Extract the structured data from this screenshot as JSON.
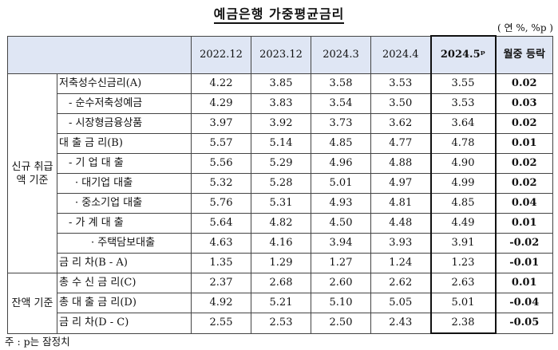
{
  "title": "예금은행 가중평균금리",
  "unit": "( 연 %, %p )",
  "columns": [
    "2022.12",
    "2023.12",
    "2024.3",
    "2024.4",
    "2024.5ᵖ",
    "월중 등락"
  ],
  "groups": {
    "new": "신규 취급액 기준",
    "balance": "잔액 기준"
  },
  "rows": [
    {
      "label": "저축성수신금리(A)",
      "values": [
        "4.22",
        "3.85",
        "3.58",
        "3.53",
        "3.55",
        "0.02"
      ]
    },
    {
      "label": "- 순수저축성예금",
      "values": [
        "4.29",
        "3.83",
        "3.54",
        "3.50",
        "3.53",
        "0.03"
      ]
    },
    {
      "label": "- 시장형금융상품",
      "values": [
        "3.97",
        "3.92",
        "3.73",
        "3.62",
        "3.64",
        "0.02"
      ]
    },
    {
      "label": "대 출 금 리(B)",
      "values": [
        "5.57",
        "5.14",
        "4.85",
        "4.77",
        "4.78",
        "0.01"
      ]
    },
    {
      "label": "- 기 업 대 출",
      "values": [
        "5.56",
        "5.29",
        "4.96",
        "4.88",
        "4.90",
        "0.02"
      ]
    },
    {
      "label": "· 대기업 대출",
      "values": [
        "5.32",
        "5.28",
        "5.01",
        "4.97",
        "4.99",
        "0.02"
      ]
    },
    {
      "label": "· 중소기업 대출",
      "values": [
        "5.76",
        "5.31",
        "4.93",
        "4.81",
        "4.85",
        "0.04"
      ]
    },
    {
      "label": "- 가 계 대 출",
      "values": [
        "5.64",
        "4.82",
        "4.50",
        "4.48",
        "4.49",
        "0.01"
      ]
    },
    {
      "label": "· 주택담보대출",
      "values": [
        "4.63",
        "4.16",
        "3.94",
        "3.93",
        "3.91",
        "-0.02"
      ]
    },
    {
      "label": "금 리 차(B - A)",
      "values": [
        "1.35",
        "1.29",
        "1.27",
        "1.24",
        "1.23",
        "-0.01"
      ]
    },
    {
      "label": "총 수 신 금 리(C)",
      "values": [
        "2.37",
        "2.68",
        "2.60",
        "2.62",
        "2.63",
        "0.01"
      ]
    },
    {
      "label": "총 대 출 금 리(D)",
      "values": [
        "4.92",
        "5.21",
        "5.10",
        "5.05",
        "5.01",
        "-0.04"
      ]
    },
    {
      "label": "금 리 차(D - C)",
      "values": [
        "2.55",
        "2.53",
        "2.50",
        "2.43",
        "2.38",
        "-0.05"
      ]
    }
  ],
  "note": "주 : p는 잠정치"
}
